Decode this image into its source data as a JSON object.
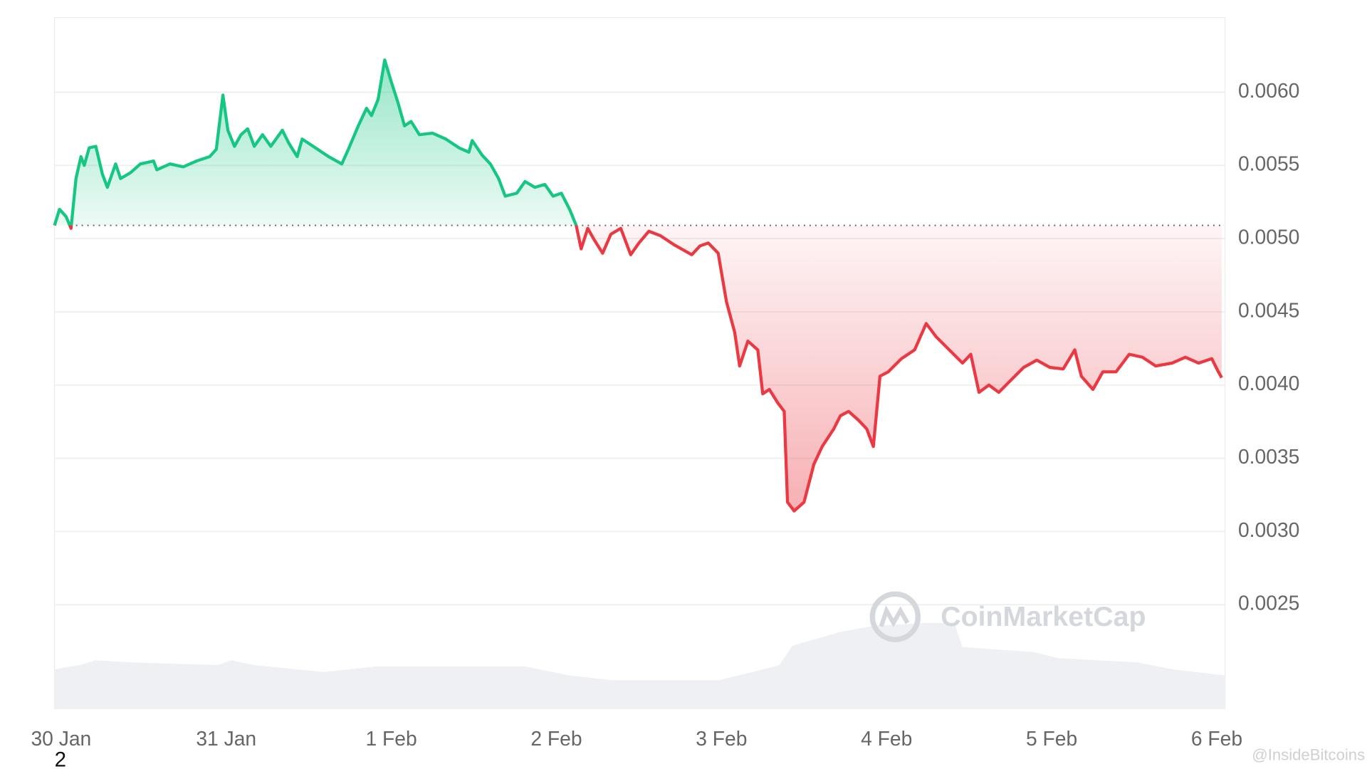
{
  "chart_data": {
    "type": "line",
    "x": [
      -0.04,
      -0.01,
      0.03,
      0.06,
      0.09,
      0.12,
      0.14,
      0.17,
      0.21,
      0.25,
      0.28,
      0.33,
      0.36,
      0.42,
      0.48,
      0.56,
      0.58,
      0.66,
      0.74,
      0.82,
      0.9,
      0.94,
      0.98,
      1.01,
      1.05,
      1.09,
      1.13,
      1.17,
      1.22,
      1.27,
      1.34,
      1.38,
      1.43,
      1.46,
      1.54,
      1.62,
      1.7,
      1.74,
      1.8,
      1.85,
      1.88,
      1.92,
      1.96,
      2.0,
      2.04,
      2.08,
      2.12,
      2.17,
      2.25,
      2.33,
      2.41,
      2.47,
      2.49,
      2.55,
      2.6,
      2.65,
      2.69,
      2.76,
      2.81,
      2.87,
      2.93,
      2.98,
      3.03,
      3.08,
      3.12,
      3.15,
      3.19,
      3.23,
      3.28,
      3.33,
      3.39,
      3.45,
      3.5,
      3.56,
      3.63,
      3.71,
      3.82,
      3.87,
      3.92,
      3.98,
      4.03,
      4.08,
      4.11,
      4.16,
      4.22,
      4.25,
      4.29,
      4.34,
      4.38,
      4.4,
      4.44,
      4.5,
      4.56,
      4.61,
      4.68,
      4.72,
      4.77,
      4.83,
      4.88,
      4.92,
      4.96,
      5.01,
      5.09,
      5.17,
      5.24,
      5.3,
      5.38,
      5.46,
      5.51,
      5.56,
      5.62,
      5.68,
      5.75,
      5.83,
      5.91,
      5.99,
      6.07,
      6.14,
      6.18,
      6.25,
      6.31,
      6.39,
      6.47,
      6.55,
      6.63,
      6.73,
      6.81,
      6.89,
      6.97,
      7.01,
      7.03
    ],
    "values": [
      0.00509,
      0.0052,
      0.00515,
      0.00507,
      0.00541,
      0.00556,
      0.0055,
      0.00562,
      0.00563,
      0.00544,
      0.00535,
      0.00551,
      0.00541,
      0.00545,
      0.00551,
      0.00553,
      0.00547,
      0.00551,
      0.00549,
      0.00553,
      0.00556,
      0.00561,
      0.00598,
      0.00574,
      0.00563,
      0.00571,
      0.00575,
      0.00563,
      0.00571,
      0.00563,
      0.00574,
      0.00565,
      0.00556,
      0.00568,
      0.00562,
      0.00556,
      0.00551,
      0.00561,
      0.00577,
      0.00589,
      0.00584,
      0.00595,
      0.00622,
      0.00607,
      0.00593,
      0.00577,
      0.0058,
      0.00571,
      0.00572,
      0.00568,
      0.00562,
      0.00559,
      0.00567,
      0.00557,
      0.00551,
      0.00541,
      0.00529,
      0.00531,
      0.00539,
      0.00535,
      0.00537,
      0.00529,
      0.00531,
      0.0052,
      0.00509,
      0.00493,
      0.00507,
      0.00499,
      0.0049,
      0.00503,
      0.00507,
      0.00489,
      0.00497,
      0.00505,
      0.00502,
      0.00496,
      0.00489,
      0.00495,
      0.00497,
      0.0049,
      0.00457,
      0.00436,
      0.00413,
      0.0043,
      0.00424,
      0.00394,
      0.00397,
      0.00388,
      0.00382,
      0.0032,
      0.00314,
      0.0032,
      0.00346,
      0.00358,
      0.0037,
      0.00379,
      0.00382,
      0.00376,
      0.0037,
      0.00358,
      0.00406,
      0.00409,
      0.00418,
      0.00424,
      0.00442,
      0.00433,
      0.00424,
      0.00415,
      0.00421,
      0.00395,
      0.004,
      0.00395,
      0.00403,
      0.00412,
      0.00417,
      0.00412,
      0.00411,
      0.00424,
      0.00406,
      0.00397,
      0.00409,
      0.00409,
      0.00421,
      0.00419,
      0.00413,
      0.00415,
      0.00419,
      0.00415,
      0.00418,
      0.00409,
      0.00405
    ],
    "baseline": 0.00509,
    "up_color": "#16c784",
    "down_color": "#ea3943",
    "xlim": [
      -0.04,
      7.05
    ],
    "xticks": [
      {
        "value": 0,
        "label": "30 Jan"
      },
      {
        "value": 1,
        "label": "31 Jan"
      },
      {
        "value": 2,
        "label": "1 Feb"
      },
      {
        "value": 3,
        "label": "2 Feb"
      },
      {
        "value": 4,
        "label": "3 Feb"
      },
      {
        "value": 5,
        "label": "4 Feb"
      },
      {
        "value": 6,
        "label": "5 Feb"
      },
      {
        "value": 7,
        "label": "6 Feb"
      }
    ],
    "ylim": [
      0.00179,
      0.00651
    ],
    "yticks": [
      0.0025,
      {
        "value": 0.003,
        "label": "0.0030"
      },
      0.0035,
      {
        "value": 0.004,
        "label": "0.0040"
      },
      0.0045,
      {
        "value": 0.005,
        "label": "0.0050"
      },
      0.0055,
      {
        "value": 0.006,
        "label": "0.0060"
      }
    ],
    "grid": true,
    "volume": {
      "x": [
        -0.04,
        0.11,
        0.21,
        0.42,
        0.95,
        1.03,
        1.17,
        1.59,
        1.91,
        2.39,
        2.81,
        3.08,
        3.34,
        3.98,
        4.19,
        4.35,
        4.43,
        4.72,
        4.93,
        5.25,
        5.41,
        5.46,
        5.89,
        6.04,
        6.52,
        6.73,
        7.05
      ],
      "values": [
        5.7,
        6.3,
        7.0,
        6.7,
        6.3,
        7.0,
        6.3,
        5.3,
        6.1,
        6.1,
        6.1,
        4.8,
        4.1,
        4.1,
        5.3,
        6.3,
        9.1,
        11.1,
        12.0,
        12.4,
        12.4,
        8.9,
        8.2,
        7.3,
        6.7,
        5.7,
        4.8
      ],
      "ylim": [
        0,
        100
      ],
      "color": "#eef0f4"
    },
    "watermark": "CoinMarketCap",
    "footnote": "2",
    "credit": "@InsideBitcoins"
  }
}
